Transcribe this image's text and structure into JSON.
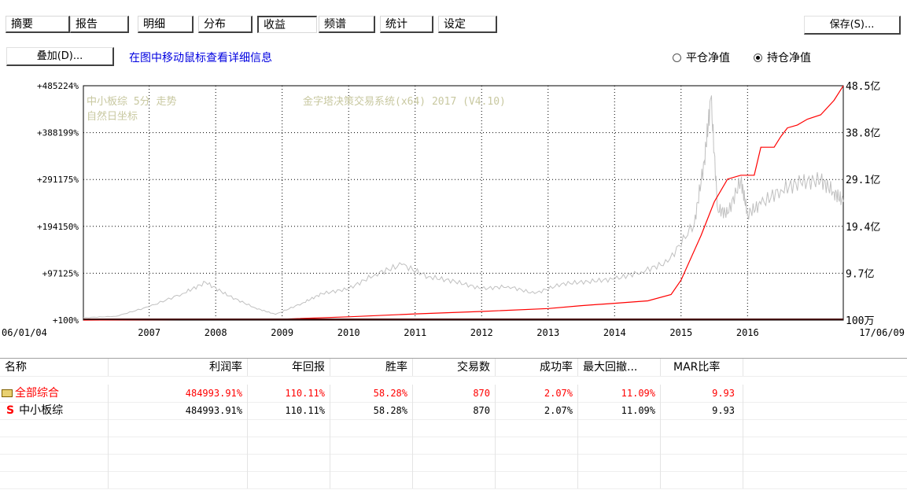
{
  "tabs": [
    {
      "label": "摘要"
    },
    {
      "label": "报告"
    },
    {
      "label": "明细"
    },
    {
      "label": "分布"
    },
    {
      "label": "收益",
      "active": true
    },
    {
      "label": "频谱"
    },
    {
      "label": "统计"
    },
    {
      "label": "设定"
    }
  ],
  "toolbar": {
    "save_label": "保存(S)...",
    "overlay_label": "叠加(D)...",
    "hint": "在图中移动鼠标查看详细信息"
  },
  "radio": {
    "close_nav": "平仓净值",
    "hold_nav": "持仓净值",
    "selected": "hold_nav"
  },
  "chart_data": {
    "type": "line",
    "title": "中小板综 5分 走势",
    "subtitle": "自然日坐标",
    "watermark": "金字塔决策交易系统(x64) 2017 (V4.10)",
    "x_start_label": "06/01/04",
    "x_end_label": "17/06/09",
    "x_ticks": [
      "2007",
      "2008",
      "2009",
      "2010",
      "2011",
      "2012",
      "2013",
      "2014",
      "2015",
      "2016"
    ],
    "y_left_ticks": [
      "+100%",
      "+97125%",
      "+194150%",
      "+291175%",
      "+388199%",
      "+485224%"
    ],
    "y_right_ticks": [
      "100万",
      "9.7亿",
      "19.4亿",
      "29.1亿",
      "38.8亿",
      "48.5亿"
    ],
    "ylim": [
      100,
      485224
    ],
    "grid": true,
    "colors": {
      "background": "#ffffff",
      "grid": "#000000",
      "equity": "#ff0000",
      "index": "#c0c0c0",
      "axis": "#000000"
    },
    "series": [
      {
        "name": "",
        "color": "#ff0000",
        "x": [
          2006.01,
          2009.0,
          2010.0,
          2011.0,
          2012.0,
          2013.0,
          2013.5,
          2014.0,
          2014.5,
          2014.85,
          2015.0,
          2015.3,
          2015.5,
          2015.7,
          2015.9,
          2016.1,
          2016.2,
          2016.4,
          2016.5,
          2016.6,
          2016.75,
          2016.9,
          2017.1,
          2017.3,
          2017.44
        ],
        "y": [
          100,
          2000,
          7000,
          13000,
          18000,
          24000,
          30000,
          35000,
          40000,
          53000,
          83000,
          175000,
          245000,
          292000,
          300000,
          300000,
          358000,
          358000,
          380000,
          398000,
          404000,
          416000,
          425000,
          455000,
          485000
        ]
      },
      {
        "name": "",
        "color": "#c0c0c0",
        "x": [
          2006.01,
          2006.5,
          2007.0,
          2007.5,
          2007.85,
          2008.2,
          2008.6,
          2008.9,
          2009.3,
          2009.6,
          2010.0,
          2010.4,
          2010.8,
          2011.2,
          2011.6,
          2012.0,
          2012.4,
          2012.8,
          2013.2,
          2013.6,
          2014.0,
          2014.4,
          2014.8,
          2015.2,
          2015.35,
          2015.45,
          2015.55,
          2015.7,
          2015.9,
          2016.0,
          2016.2,
          2016.5,
          2016.8,
          2017.1,
          2017.3,
          2017.44
        ],
        "y": [
          5000,
          8000,
          28000,
          55000,
          78000,
          50000,
          25000,
          12000,
          35000,
          55000,
          65000,
          95000,
          115000,
          90000,
          80000,
          65000,
          70000,
          55000,
          75000,
          80000,
          85000,
          100000,
          120000,
          200000,
          330000,
          460000,
          230000,
          220000,
          290000,
          220000,
          240000,
          270000,
          285000,
          290000,
          265000,
          245000
        ]
      }
    ]
  },
  "table": {
    "columns": [
      "名称",
      "利润率",
      "年回报",
      "胜率",
      "交易数",
      "成功率",
      "最大回撤...",
      "MAR比率"
    ],
    "rows": [
      {
        "name": "全部综合",
        "icon": "folder-icon",
        "red": true,
        "values": [
          "484993.91%",
          "110.11%",
          "58.28%",
          "870",
          "2.07%",
          "11.09%",
          "9.93"
        ]
      },
      {
        "name": "中小板综",
        "icon": "s-icon",
        "red": false,
        "values": [
          "484993.91%",
          "110.11%",
          "58.28%",
          "870",
          "2.07%",
          "11.09%",
          "9.93"
        ]
      }
    ]
  }
}
